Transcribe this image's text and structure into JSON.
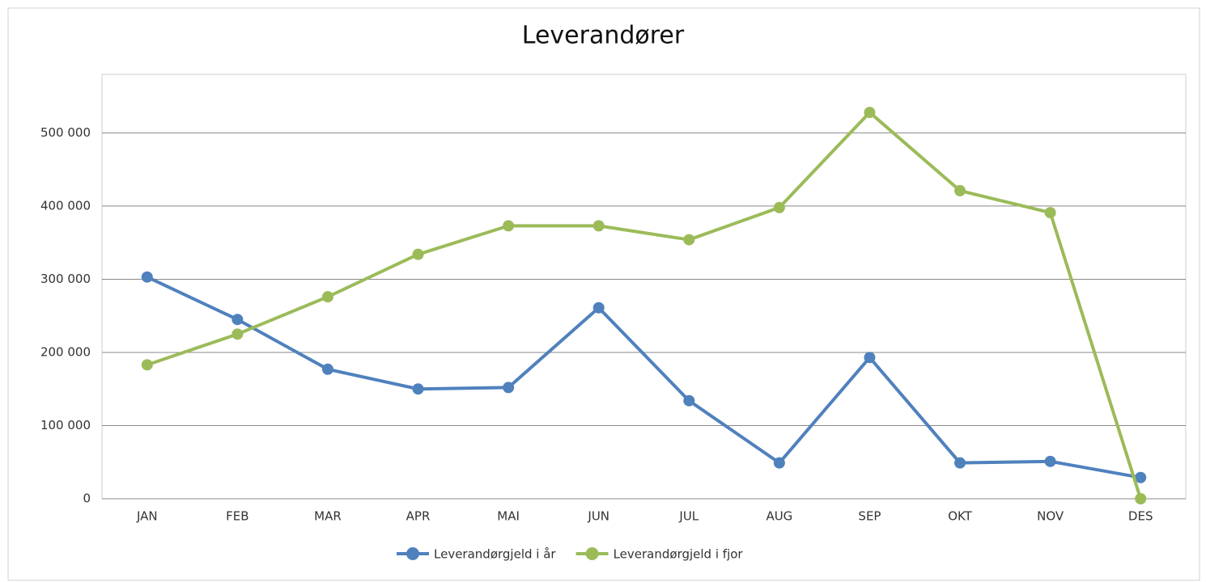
{
  "chart_data": {
    "type": "line",
    "title": "Leverandører",
    "categories": [
      "JAN",
      "FEB",
      "MAR",
      "APR",
      "MAI",
      "JUN",
      "JUL",
      "AUG",
      "SEP",
      "OKT",
      "NOV",
      "DES"
    ],
    "series": [
      {
        "name": "Leverandørgjeld i år",
        "color": "#4f81bd",
        "values": [
          303000,
          245000,
          177000,
          150000,
          152000,
          261000,
          134000,
          49000,
          193000,
          49000,
          51000,
          29000
        ]
      },
      {
        "name": "Leverandørgjeld i fjor",
        "color": "#9bbb59",
        "values": [
          183000,
          225000,
          276000,
          334000,
          373000,
          373000,
          354000,
          398000,
          528000,
          421000,
          391000,
          0
        ]
      }
    ],
    "ylim": [
      0,
      580000
    ],
    "yticks": [
      0,
      {
        "value": 100000,
        "label": "100 000"
      },
      {
        "value": 200000,
        "label": "200 000"
      },
      {
        "value": 300000,
        "label": "300 000"
      },
      {
        "value": 400000,
        "label": "400 000"
      },
      {
        "value": 500000,
        "label": "500 000"
      }
    ],
    "grid": true,
    "legend": "bottom"
  }
}
